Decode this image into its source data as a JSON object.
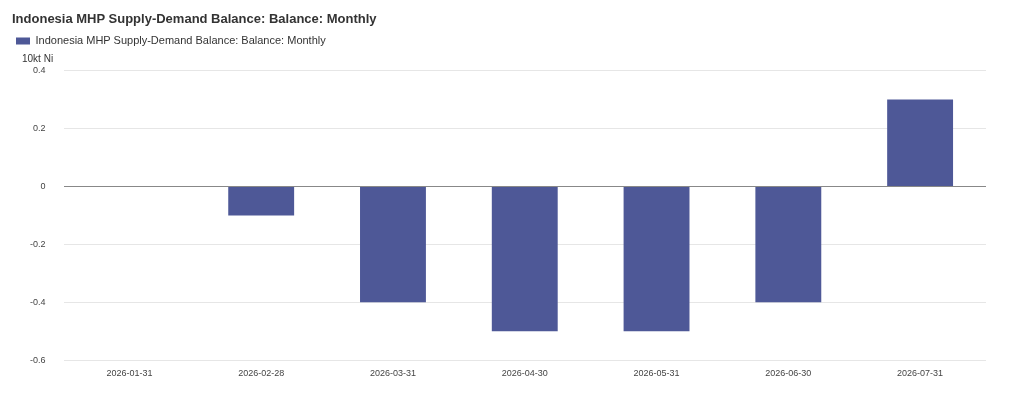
{
  "chart_data": {
    "type": "bar",
    "title": "Indonesia MHP Supply-Demand Balance: Balance: Monthly",
    "ylabel": "10kt Ni",
    "categories": [
      "2026-01-31",
      "2026-02-28",
      "2026-03-31",
      "2026-04-30",
      "2026-05-31",
      "2026-06-30",
      "2026-07-31"
    ],
    "series": [
      {
        "name": "Indonesia MHP Supply-Demand Balance: Balance: Monthly",
        "color": "#4e5897",
        "values": [
          0,
          -0.1,
          -0.4,
          -0.5,
          -0.5,
          -0.4,
          0.3
        ]
      }
    ],
    "ylim": [
      -0.6,
      0.4
    ],
    "yticks": [
      -0.6,
      -0.4,
      -0.2,
      0,
      0.2,
      0.4
    ],
    "grid": "y",
    "legend": "top left"
  }
}
